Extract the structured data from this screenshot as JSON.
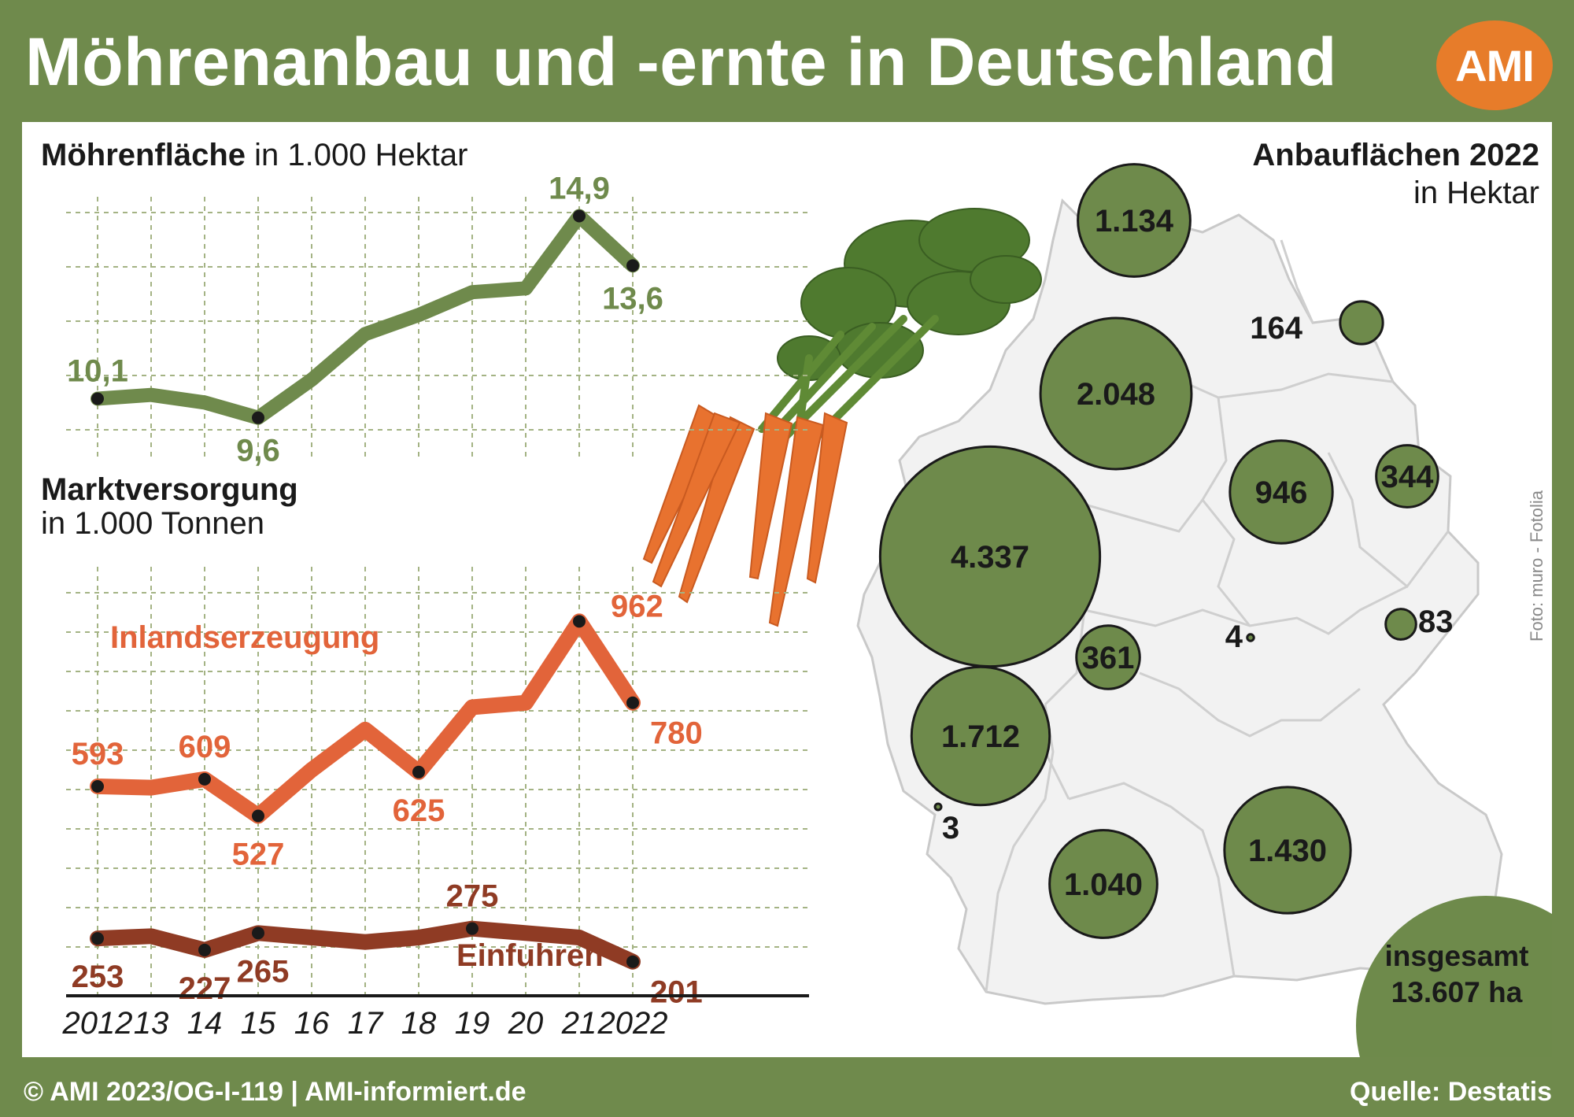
{
  "header": {
    "title": "Möhrenanbau und -ernte in Deutschland",
    "logo_text": "AMI"
  },
  "footer": {
    "copyright": "© AMI 2023/OG-I-119 | AMI-informiert.de",
    "source": "Quelle: Destatis"
  },
  "photo_credit": "Foto: muro - Fotolia",
  "colors": {
    "frame": "#6f8a4c",
    "area_line": "#6f8a4c",
    "production_line": "#e2643a",
    "imports_line": "#8f3b24",
    "bubble": "#6e8a4b",
    "logo": "#e77c2a"
  },
  "chart_data": [
    {
      "type": "line",
      "title_bold": "Möhrenfläche",
      "title_rest": " in 1.000 Hektar",
      "x": [
        "2012",
        "13",
        "14",
        "15",
        "16",
        "17",
        "18",
        "19",
        "20",
        "21",
        "2022"
      ],
      "series": [
        {
          "values": [
            10.1,
            10.2,
            10.0,
            9.6,
            10.6,
            11.8,
            12.3,
            12.9,
            13.0,
            14.9,
            13.6
          ]
        }
      ],
      "labeled_points": [
        {
          "index": 0,
          "label": "10,1",
          "pos": "above"
        },
        {
          "index": 3,
          "label": "9,6",
          "pos": "below"
        },
        {
          "index": 9,
          "label": "14,9",
          "pos": "above"
        },
        {
          "index": 10,
          "label": "13,6",
          "pos": "below"
        }
      ],
      "ylim": [
        9.2,
        15.2
      ],
      "grid": true
    },
    {
      "type": "line",
      "title": "Marktversorgung",
      "subtitle": "in 1.000 Tonnen",
      "x": [
        "2012",
        "13",
        "14",
        "15",
        "16",
        "17",
        "18",
        "19",
        "20",
        "21",
        "2022"
      ],
      "series": [
        {
          "name": "Inlandserzeugung",
          "values": [
            593,
            590,
            609,
            527,
            630,
            720,
            625,
            770,
            780,
            962,
            780
          ],
          "labeled_points": [
            {
              "index": 0,
              "label": "593",
              "pos": "above"
            },
            {
              "index": 2,
              "label": "609",
              "pos": "above"
            },
            {
              "index": 3,
              "label": "527",
              "pos": "below"
            },
            {
              "index": 6,
              "label": "625",
              "pos": "below"
            },
            {
              "index": 9,
              "label": "962",
              "pos": "above-right"
            },
            {
              "index": 10,
              "label": "780",
              "pos": "right"
            }
          ]
        },
        {
          "name": "Einfuhren",
          "values": [
            253,
            258,
            227,
            265,
            255,
            245,
            255,
            275,
            265,
            255,
            201
          ],
          "labeled_points": [
            {
              "index": 0,
              "label": "253",
              "pos": "below"
            },
            {
              "index": 2,
              "label": "227",
              "pos": "below"
            },
            {
              "index": 3,
              "label": "265",
              "pos": "below-right"
            },
            {
              "index": 7,
              "label": "275",
              "pos": "above"
            },
            {
              "index": 10,
              "label": "201",
              "pos": "right"
            }
          ]
        }
      ],
      "ylim": [
        160,
        1040
      ],
      "grid": true
    },
    {
      "type": "bubble-map",
      "title": "Anbauflächen 2022",
      "subtitle": "in Hektar",
      "regions": [
        {
          "label": "1.134",
          "value": 1134
        },
        {
          "label": "164",
          "value": 164
        },
        {
          "label": "2.048",
          "value": 2048
        },
        {
          "label": "946",
          "value": 946
        },
        {
          "label": "344",
          "value": 344
        },
        {
          "label": "4.337",
          "value": 4337
        },
        {
          "label": "83",
          "value": 83
        },
        {
          "label": "4",
          "value": 4
        },
        {
          "label": "361",
          "value": 361
        },
        {
          "label": "1.712",
          "value": 1712
        },
        {
          "label": "3",
          "value": 3
        },
        {
          "label": "1.430",
          "value": 1430
        },
        {
          "label": "1.040",
          "value": 1040
        }
      ],
      "total_label_1": "insgesamt",
      "total_label_2": "13.607 ha"
    }
  ]
}
